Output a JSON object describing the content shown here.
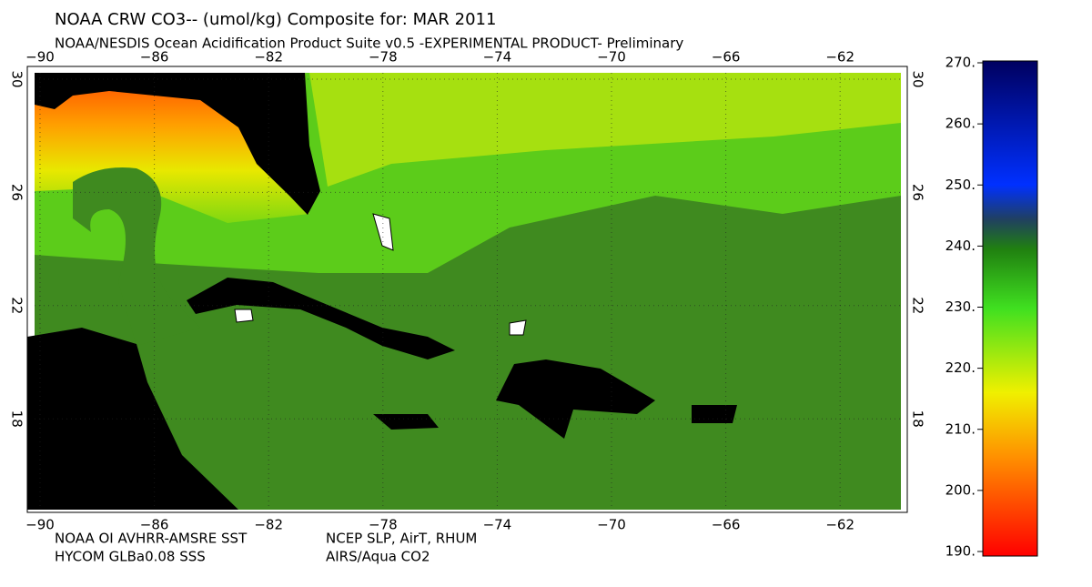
{
  "header": {
    "title": "NOAA CRW CO3-- (umol/kg) Composite for: MAR 2011",
    "subtitle": "NOAA/NESDIS Ocean Acidification Product Suite  v0.5 -EXPERIMENTAL PRODUCT-   Preliminary"
  },
  "map": {
    "lon_ticks": [
      {
        "value": -90,
        "label": "−90"
      },
      {
        "value": -86,
        "label": "−86"
      },
      {
        "value": -82,
        "label": "−82"
      },
      {
        "value": -78,
        "label": "−78"
      },
      {
        "value": -74,
        "label": "−74"
      },
      {
        "value": -70,
        "label": "−70"
      },
      {
        "value": -66,
        "label": "−66"
      },
      {
        "value": -62,
        "label": "−62"
      }
    ],
    "lat_ticks": [
      30,
      26,
      22,
      18
    ]
  },
  "colorbar": {
    "ticks": [
      {
        "value": 270,
        "label": "270."
      },
      {
        "value": 260,
        "label": "260."
      },
      {
        "value": 250,
        "label": "250."
      },
      {
        "value": 240,
        "label": "240."
      },
      {
        "value": 230,
        "label": "230."
      },
      {
        "value": 220,
        "label": "220."
      },
      {
        "value": 210,
        "label": "210."
      },
      {
        "value": 200,
        "label": "200."
      },
      {
        "value": 190,
        "label": "190."
      }
    ]
  },
  "footer": {
    "sources": [
      "NOAA OI AVHRR-AMSRE SST",
      "NCEP SLP, AirT, RHUM",
      "HYCOM GLBa0.08 SSS",
      "AIRS/Aqua CO2"
    ]
  }
}
